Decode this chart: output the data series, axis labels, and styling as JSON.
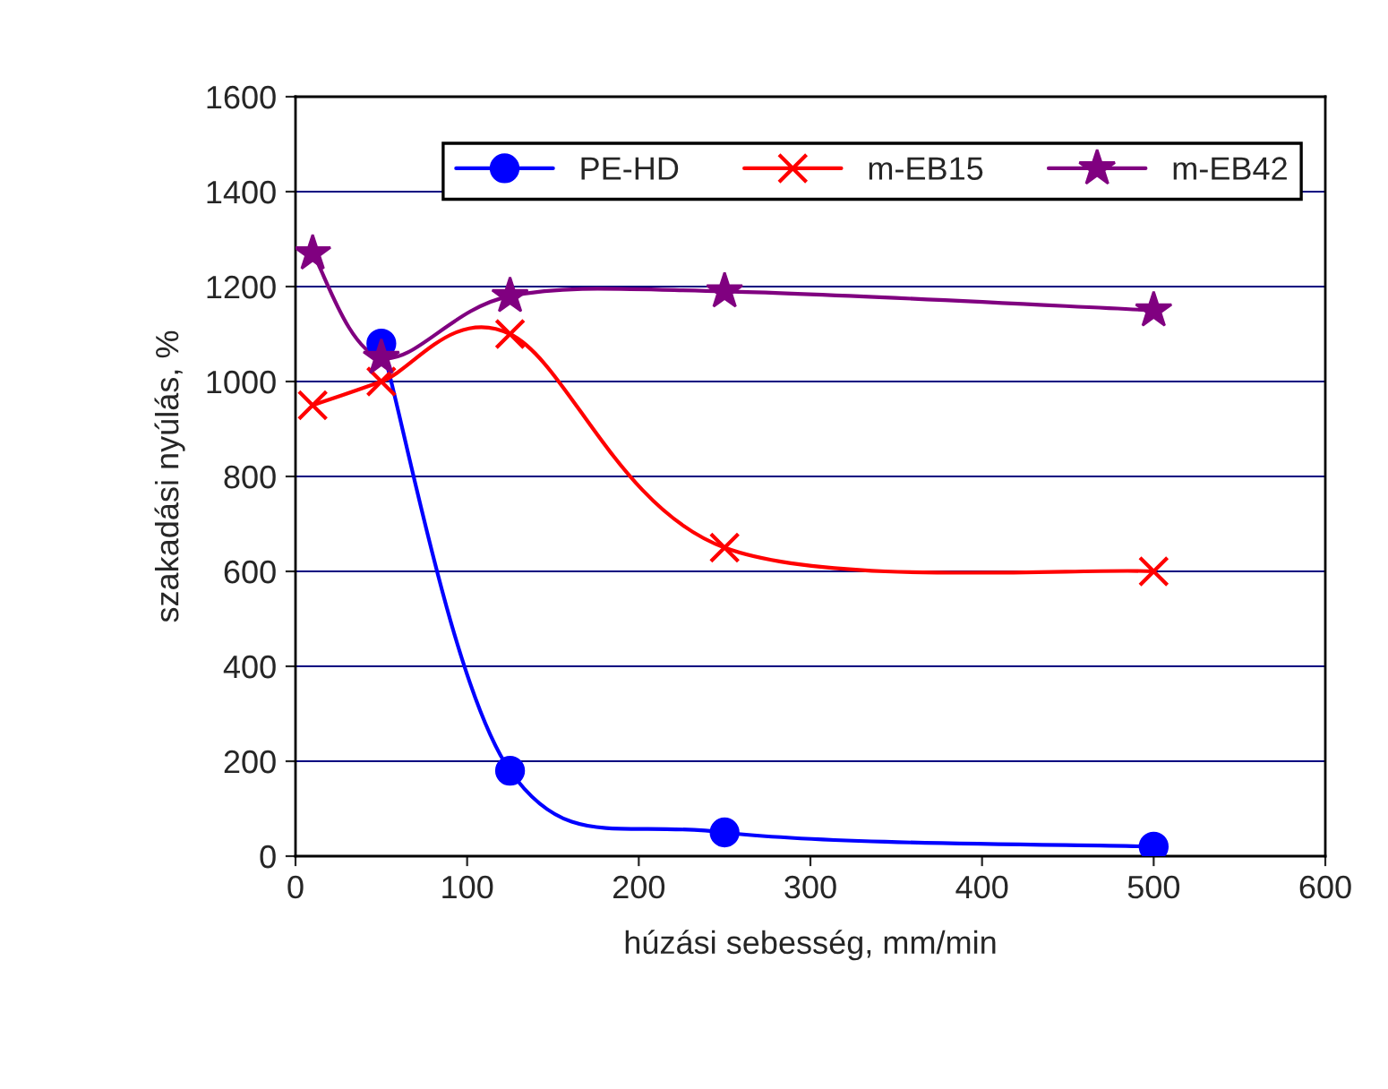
{
  "chart_data": {
    "type": "line",
    "xlabel": "húzási sebesség, mm/min",
    "ylabel": "szakadási nyúlás, %",
    "xlim": [
      0,
      600
    ],
    "xticks": [
      0,
      100,
      200,
      300,
      400,
      500,
      600
    ],
    "ylim": [
      0,
      1600
    ],
    "yticks": [
      0,
      200,
      400,
      600,
      800,
      1000,
      1200,
      1400,
      1600
    ],
    "grid": "y",
    "legend": "top",
    "series": [
      {
        "name": "PE-HD",
        "color": "#0000ff",
        "marker": "circle",
        "x": [
          50,
          125,
          250,
          500
        ],
        "values": [
          1080,
          180,
          50,
          20
        ]
      },
      {
        "name": "m-EB15",
        "color": "#ff0000",
        "marker": "cross",
        "x": [
          10,
          50,
          125,
          250,
          500
        ],
        "values": [
          950,
          1000,
          1100,
          650,
          600
        ]
      },
      {
        "name": "m-EB42",
        "color": "#800080",
        "marker": "star",
        "x": [
          10,
          50,
          125,
          250,
          500
        ],
        "values": [
          1270,
          1050,
          1180,
          1190,
          1150
        ]
      }
    ]
  }
}
